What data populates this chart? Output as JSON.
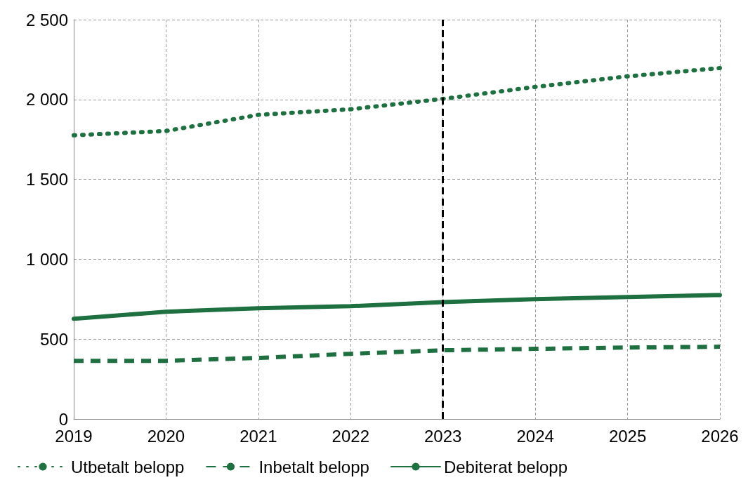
{
  "chart_data": {
    "type": "line",
    "categories": [
      "2019",
      "2020",
      "2021",
      "2022",
      "2023",
      "2024",
      "2025",
      "2026"
    ],
    "series": [
      {
        "name": "Utbetalt belopp",
        "color": "#1e7040",
        "line_style": "dotted",
        "values": [
          1776,
          1803,
          1904,
          1939,
          2004,
          2079,
          2145,
          2197
        ]
      },
      {
        "name": "Inbetalt belopp",
        "color": "#1e7040",
        "line_style": "dashed",
        "values": [
          364,
          364,
          382,
          408,
          430,
          439,
          447,
          452
        ]
      },
      {
        "name": "Debiterat belopp",
        "color": "#1e7040",
        "line_style": "solid",
        "values": [
          627,
          671,
          693,
          706,
          732,
          750,
          763,
          776
        ]
      }
    ],
    "ylim": [
      0,
      2500
    ],
    "yticks": [
      0,
      500,
      {
        "value": 1000,
        "label": "1 000"
      },
      {
        "value": 1500,
        "label": "1 500"
      },
      {
        "value": 2000,
        "label": "2 000"
      },
      {
        "value": 2500,
        "label": "2 500"
      }
    ],
    "ref_lines": [
      {
        "axis": "x",
        "value": "2023",
        "color": "#000000",
        "line_style": "dashed"
      }
    ],
    "grid": true,
    "legend": "bottom",
    "marker": "none"
  }
}
